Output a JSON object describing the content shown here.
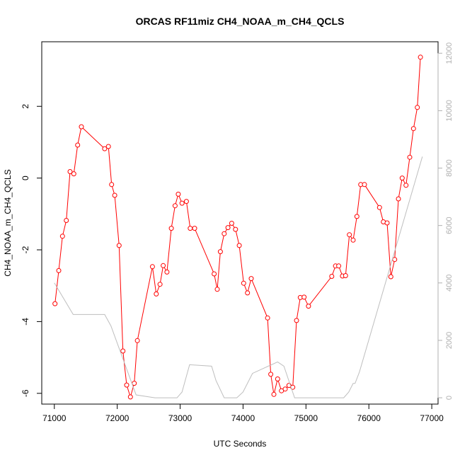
{
  "chart_data": {
    "type": "line",
    "title": "ORCAS RF11miz CH4_NOAA_m_CH4_QCLS",
    "xlabel": "UTC Seconds",
    "ylabel": "CH4_NOAA_m_CH4_QCLS",
    "xlim": [
      70800,
      77100
    ],
    "ylim": [
      -6.3,
      3.8
    ],
    "y2lim": [
      -220,
      12400
    ],
    "x_ticks": [
      71000,
      72000,
      73000,
      74000,
      75000,
      76000,
      77000
    ],
    "y_ticks": [
      -6,
      -4,
      -2,
      0,
      2
    ],
    "y2_ticks": [
      0,
      2000,
      4000,
      6000,
      8000,
      10000,
      12000
    ],
    "colors": {
      "series": "#ff0000",
      "altitude": "#bebebe",
      "axis": "#000000",
      "right_axis": "#b0b0b0"
    },
    "series": [
      {
        "axis": "left",
        "style": "line+markers",
        "x": [
          71010,
          71070,
          71130,
          71190,
          71250,
          71310,
          71370,
          71430,
          71800,
          71860,
          71910,
          71960,
          72030,
          72090,
          72150,
          72210,
          72270,
          72320,
          72560,
          72620,
          72680,
          72730,
          72790,
          72860,
          72920,
          72970,
          73030,
          73100,
          73160,
          73230,
          73540,
          73590,
          73640,
          73700,
          73760,
          73820,
          73880,
          73940,
          74010,
          74070,
          74130,
          74390,
          74440,
          74490,
          74550,
          74610,
          74670,
          74730,
          74790,
          74850,
          74910,
          74970,
          75040,
          75410,
          75470,
          75520,
          75580,
          75630,
          75690,
          75750,
          75810,
          75870,
          75930,
          76170,
          76230,
          76290,
          76350,
          76410,
          76470,
          76530,
          76590,
          76650,
          76710,
          76770,
          76820
        ],
        "y": [
          -3.5,
          -2.58,
          -1.62,
          -1.18,
          0.18,
          0.12,
          0.92,
          1.43,
          0.82,
          0.88,
          -0.18,
          -0.48,
          -1.88,
          -4.82,
          -5.77,
          -6.1,
          -5.72,
          -4.53,
          -2.47,
          -3.23,
          -2.96,
          -2.44,
          -2.62,
          -1.4,
          -0.77,
          -0.45,
          -0.7,
          -0.65,
          -1.4,
          -1.4,
          -2.67,
          -3.1,
          -2.05,
          -1.55,
          -1.38,
          -1.26,
          -1.43,
          -1.88,
          -2.93,
          -3.2,
          -2.8,
          -3.9,
          -5.47,
          -6.03,
          -5.6,
          -5.93,
          -5.88,
          -5.78,
          -5.83,
          -3.97,
          -3.33,
          -3.32,
          -3.57,
          -2.74,
          -2.45,
          -2.45,
          -2.73,
          -2.72,
          -1.58,
          -1.73,
          -1.07,
          -0.18,
          -0.18,
          -0.82,
          -1.22,
          -1.25,
          -2.75,
          -2.27,
          -0.58,
          0.0,
          -0.2,
          0.58,
          1.38,
          1.97,
          3.37
        ]
      },
      {
        "axis": "right",
        "style": "line",
        "x": [
          71000,
          71300,
          71800,
          71900,
          72300,
          72600,
          72950,
          73030,
          73150,
          73500,
          73570,
          73700,
          73900,
          74000,
          74150,
          74550,
          74650,
          74820,
          75400,
          75600,
          75680,
          75750,
          75780,
          75850,
          76850
        ],
        "y": [
          4000,
          2900,
          2900,
          2500,
          100,
          0,
          0,
          200,
          1150,
          1100,
          600,
          0,
          0,
          200,
          850,
          1250,
          1100,
          0,
          0,
          0,
          200,
          500,
          500,
          900,
          8400
        ]
      }
    ]
  }
}
